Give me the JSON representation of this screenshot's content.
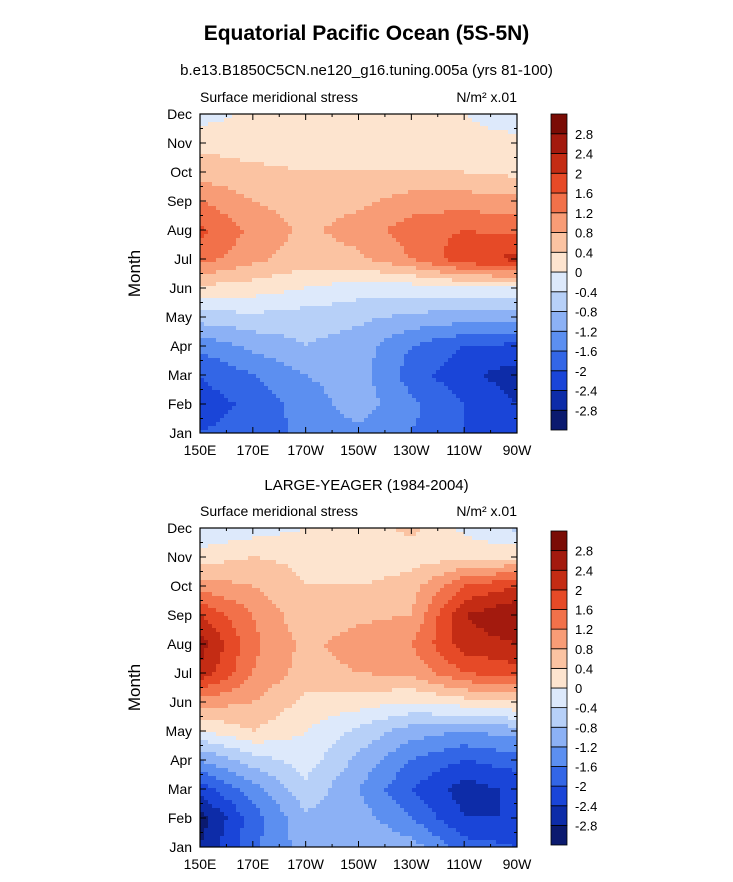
{
  "figure": {
    "title": "Equatorial Pacific Ocean (5S-5N)",
    "subtitle": "b.e13.B1850C5CN.ne120_g16.tuning.005a (yrs 81-100)",
    "panel2_title": "LARGE-YEAGER (1984-2004)"
  },
  "chart_data": [
    {
      "type": "heatmap",
      "title": "Equatorial Pacific Ocean (5S-5N)",
      "subtitle": "b.e13.B1850C5CN.ne120_g16.tuning.005a (yrs 81-100)",
      "left_label": "Surface meridional stress",
      "right_label": "N/m² x.01",
      "ylabel": "Month",
      "xlabel": "",
      "x_ticks": [
        "150E",
        "170E",
        "170W",
        "150W",
        "130W",
        "110W",
        "90W"
      ],
      "y_ticks": [
        "Jan",
        "Feb",
        "Mar",
        "Apr",
        "May",
        "Jun",
        "Jul",
        "Aug",
        "Sep",
        "Oct",
        "Nov",
        "Dec"
      ],
      "colorbar": {
        "labels": [
          "-2.8",
          "-2.4",
          "-2",
          "-1.6",
          "-1.2",
          "-0.8",
          "-0.4",
          "0",
          "0.4",
          "0.8",
          "1.2",
          "1.6",
          "2",
          "2.4",
          "2.8"
        ],
        "colors": [
          "#0b1a6f",
          "#0d2ca8",
          "#1a45d8",
          "#3366e6",
          "#5c8ff0",
          "#8cb1f5",
          "#b7d0f8",
          "#dde9fb",
          "#fde4cf",
          "#fbc3a2",
          "#f89c76",
          "#f2714a",
          "#e64a27",
          "#c42c14",
          "#a31a0e",
          "#7a0c05"
        ]
      },
      "x": [
        150,
        170,
        190,
        210,
        230,
        250,
        270
      ],
      "z": [
        [
          -2.0,
          -1.8,
          -1.5,
          -1.3,
          -1.6,
          -2.0,
          -2.2
        ],
        [
          -2.2,
          -1.9,
          -1.4,
          -1.0,
          -1.5,
          -2.0,
          -2.4
        ],
        [
          -2.0,
          -1.6,
          -1.2,
          -1.0,
          -1.8,
          -2.3,
          -2.6
        ],
        [
          -1.5,
          -1.1,
          -0.8,
          -1.0,
          -1.6,
          -2.0,
          -2.1
        ],
        [
          -0.6,
          -0.5,
          -0.6,
          -0.7,
          -0.9,
          -1.0,
          -1.0
        ],
        [
          0.3,
          0.2,
          0.0,
          -0.2,
          -0.2,
          -0.1,
          0.0
        ],
        [
          1.4,
          0.9,
          0.6,
          0.7,
          1.2,
          1.9,
          2.1
        ],
        [
          1.7,
          1.1,
          0.7,
          1.0,
          1.4,
          1.6,
          1.5
        ],
        [
          1.2,
          0.8,
          0.6,
          0.7,
          1.0,
          1.0,
          0.9
        ],
        [
          0.6,
          0.5,
          0.4,
          0.4,
          0.4,
          0.4,
          0.3
        ],
        [
          0.3,
          0.2,
          0.2,
          0.2,
          0.2,
          0.1,
          0.1
        ],
        [
          -0.2,
          0.1,
          0.1,
          0.1,
          0.0,
          0.0,
          -0.2
        ]
      ]
    },
    {
      "type": "heatmap",
      "title": "LARGE-YEAGER (1984-2004)",
      "left_label": "Surface meridional stress",
      "right_label": "N/m² x.01",
      "ylabel": "Month",
      "xlabel": "",
      "x_ticks": [
        "150E",
        "170E",
        "170W",
        "150W",
        "130W",
        "110W",
        "90W"
      ],
      "y_ticks": [
        "Jan",
        "Feb",
        "Mar",
        "Apr",
        "May",
        "Jun",
        "Jul",
        "Aug",
        "Sep",
        "Oct",
        "Nov",
        "Dec"
      ],
      "colorbar": {
        "labels": [
          "-2.8",
          "-2.4",
          "-2",
          "-1.6",
          "-1.2",
          "-0.8",
          "-0.4",
          "0",
          "0.4",
          "0.8",
          "1.2",
          "1.6",
          "2",
          "2.4",
          "2.8"
        ],
        "colors": [
          "#0b1a6f",
          "#0d2ca8",
          "#1a45d8",
          "#3366e6",
          "#5c8ff0",
          "#8cb1f5",
          "#b7d0f8",
          "#dde9fb",
          "#fde4cf",
          "#fbc3a2",
          "#f89c76",
          "#f2714a",
          "#e64a27",
          "#c42c14",
          "#a31a0e",
          "#7a0c05"
        ]
      },
      "x": [
        150,
        170,
        190,
        210,
        230,
        250,
        270
      ],
      "z": [
        [
          -2.8,
          -1.7,
          -1.0,
          -0.8,
          -1.0,
          -1.8,
          -2.0
        ],
        [
          -3.0,
          -1.8,
          -0.9,
          -1.0,
          -1.6,
          -2.4,
          -2.4
        ],
        [
          -2.2,
          -1.4,
          -0.5,
          -1.2,
          -2.0,
          -2.6,
          -2.3
        ],
        [
          -1.2,
          -0.6,
          -0.2,
          -0.9,
          -1.6,
          -2.0,
          -1.8
        ],
        [
          0.0,
          0.4,
          0.0,
          -0.5,
          -1.0,
          -1.2,
          -1.0
        ],
        [
          1.0,
          0.8,
          0.3,
          0.2,
          0.0,
          0.2,
          0.4
        ],
        [
          2.3,
          1.2,
          0.6,
          0.8,
          0.9,
          1.6,
          1.8
        ],
        [
          2.6,
          1.3,
          0.7,
          1.0,
          1.2,
          2.2,
          2.4
        ],
        [
          2.0,
          1.2,
          0.5,
          0.7,
          0.8,
          2.4,
          2.8
        ],
        [
          1.0,
          0.8,
          0.4,
          0.4,
          0.6,
          1.6,
          2.0
        ],
        [
          0.2,
          0.4,
          0.3,
          0.1,
          0.2,
          0.3,
          0.3
        ],
        [
          -0.4,
          -0.2,
          0.0,
          0.2,
          0.5,
          -0.1,
          -0.5
        ]
      ]
    }
  ]
}
